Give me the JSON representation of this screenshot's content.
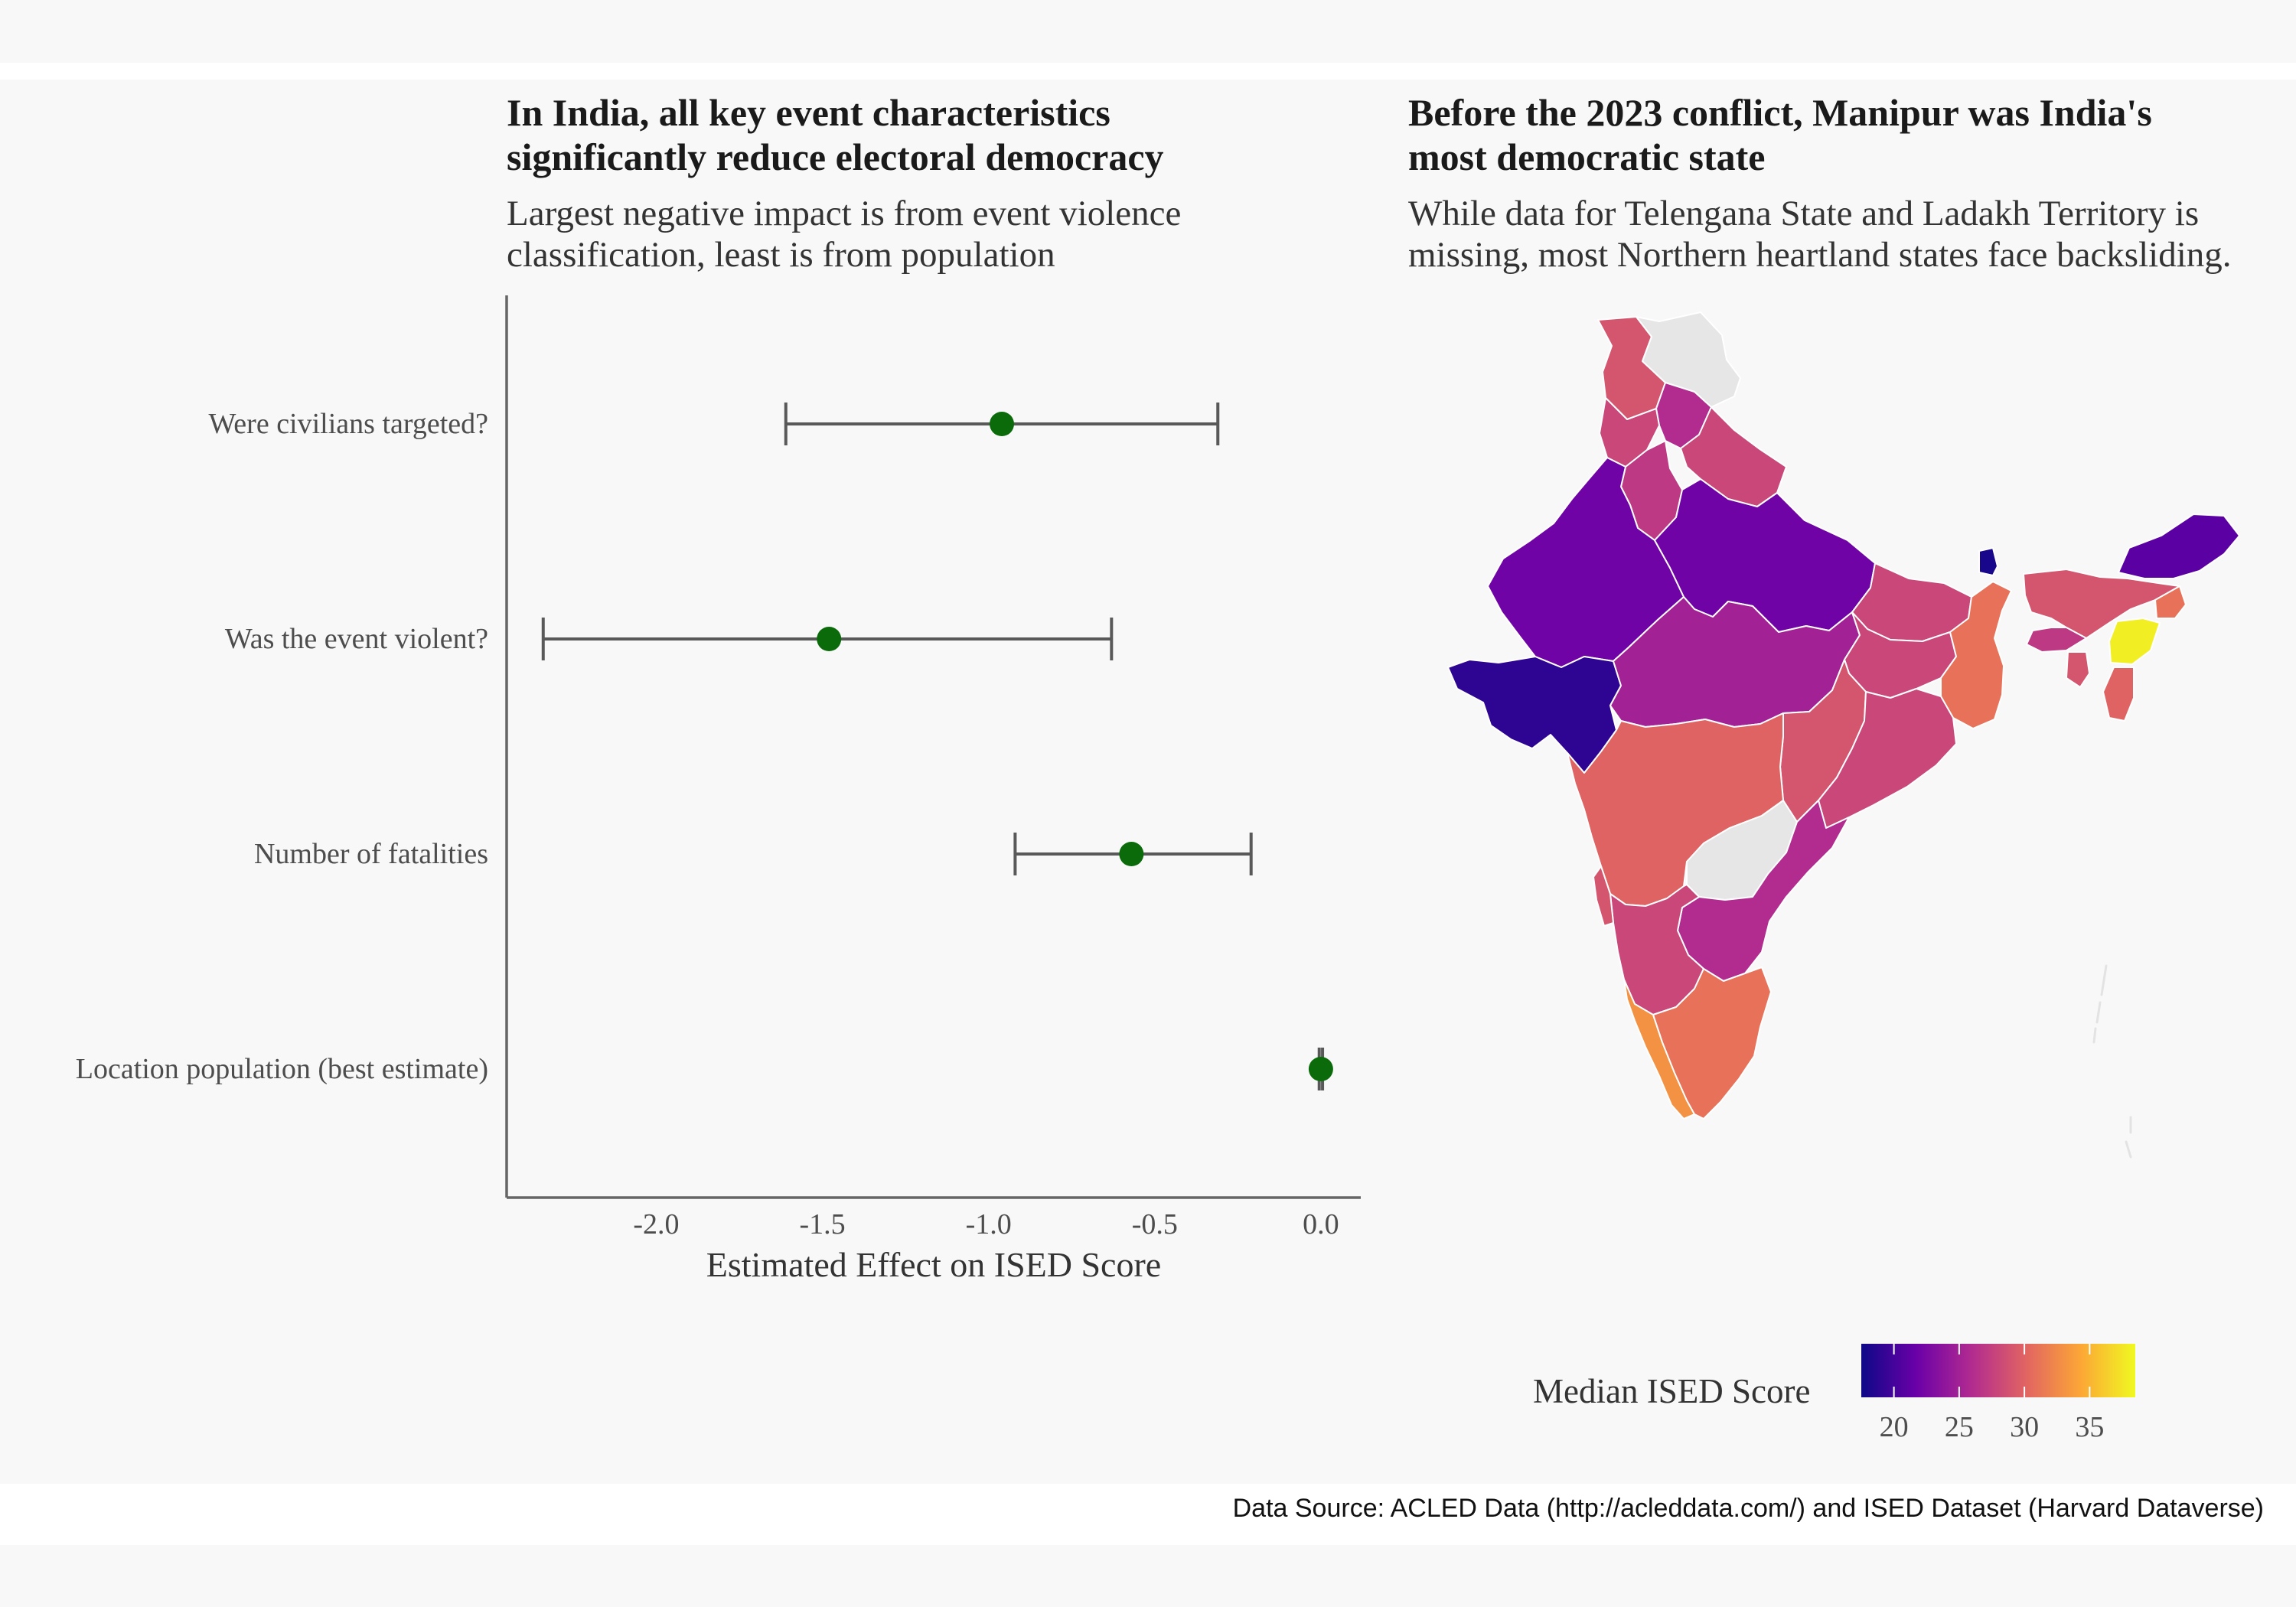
{
  "left_panel": {
    "title": "In India, all key event characteristics\nsignificantly reduce electoral democracy",
    "subtitle": "Largest negative impact is from event violence\nclassification, least is from population"
  },
  "right_panel": {
    "title": "Before the 2023 conflict, Manipur was India's\nmost democratic state",
    "subtitle": "While data for Telengana State and Ladakh Territory is\nmissing, most Northern heartland states face backsliding."
  },
  "source": "Data Source: ACLED Data (http://acleddata.com/) and ISED Dataset (Harvard Dataverse)",
  "colors": {
    "point": "#0b6b0b",
    "errorbar": "#595959",
    "missing": "#e6e6e6",
    "scale": [
      "#0d0887",
      "#6a00a8",
      "#b12a90",
      "#e16462",
      "#fca636",
      "#f0f921"
    ]
  },
  "chart_data": [
    {
      "type": "scatter",
      "variant": "coefficient-plot-with-error-bars",
      "xlabel": "Estimated Effect on ISED Score",
      "ylabel": "",
      "xlim": [
        -2.45,
        0.12
      ],
      "xticks": [
        "-2.0",
        "-1.5",
        "-1.0",
        "-0.5",
        "0.0"
      ],
      "xtick_values": [
        -2.0,
        -1.5,
        -1.0,
        -0.5,
        0.0
      ],
      "grid": false,
      "rows": [
        {
          "label": "Were civilians targeted?",
          "estimate": -0.96,
          "low": -1.61,
          "high": -0.31
        },
        {
          "label": "Was the event violent?",
          "estimate": -1.48,
          "low": -2.34,
          "high": -0.63
        },
        {
          "label": "Number of fatalities",
          "estimate": -0.57,
          "low": -0.92,
          "high": -0.21
        },
        {
          "label": "Location population (best estimate)",
          "estimate": 0.0,
          "low": -0.005,
          "high": 0.005
        }
      ]
    },
    {
      "type": "heatmap",
      "variant": "choropleth",
      "legend_title": "Median ISED Score",
      "legend_ticks": [
        "20",
        "25",
        "30",
        "35"
      ],
      "legend_tick_values": [
        20,
        25,
        30,
        35
      ],
      "scale_range": [
        17.5,
        38.5
      ],
      "legend_position": "bottom-right",
      "regions": [
        {
          "name": "Jammu and Kashmir",
          "value": 29
        },
        {
          "name": "Ladakh",
          "value": null
        },
        {
          "name": "Himachal Pradesh",
          "value": 26
        },
        {
          "name": "Punjab",
          "value": 28
        },
        {
          "name": "Haryana",
          "value": 27
        },
        {
          "name": "Uttarakhand",
          "value": 28
        },
        {
          "name": "Rajasthan",
          "value": 22
        },
        {
          "name": "Uttar Pradesh",
          "value": 22
        },
        {
          "name": "Gujarat",
          "value": 19
        },
        {
          "name": "Madhya Pradesh",
          "value": 25
        },
        {
          "name": "Bihar",
          "value": 28
        },
        {
          "name": "Jharkhand",
          "value": 28
        },
        {
          "name": "West Bengal",
          "value": 31
        },
        {
          "name": "Chhattisgarh",
          "value": 29
        },
        {
          "name": "Odisha",
          "value": 28
        },
        {
          "name": "Maharashtra",
          "value": 30
        },
        {
          "name": "Telangana",
          "value": null
        },
        {
          "name": "Andhra Pradesh",
          "value": 26
        },
        {
          "name": "Karnataka",
          "value": 28
        },
        {
          "name": "Goa",
          "value": 29
        },
        {
          "name": "Kerala",
          "value": 33
        },
        {
          "name": "Tamil Nadu",
          "value": 31
        },
        {
          "name": "Sikkim",
          "value": 18
        },
        {
          "name": "Arunachal Pradesh",
          "value": 21
        },
        {
          "name": "Assam",
          "value": 29
        },
        {
          "name": "Meghalaya",
          "value": 27
        },
        {
          "name": "Nagaland",
          "value": 31
        },
        {
          "name": "Manipur",
          "value": 38
        },
        {
          "name": "Mizoram",
          "value": 30
        },
        {
          "name": "Tripura",
          "value": 29
        }
      ]
    }
  ]
}
